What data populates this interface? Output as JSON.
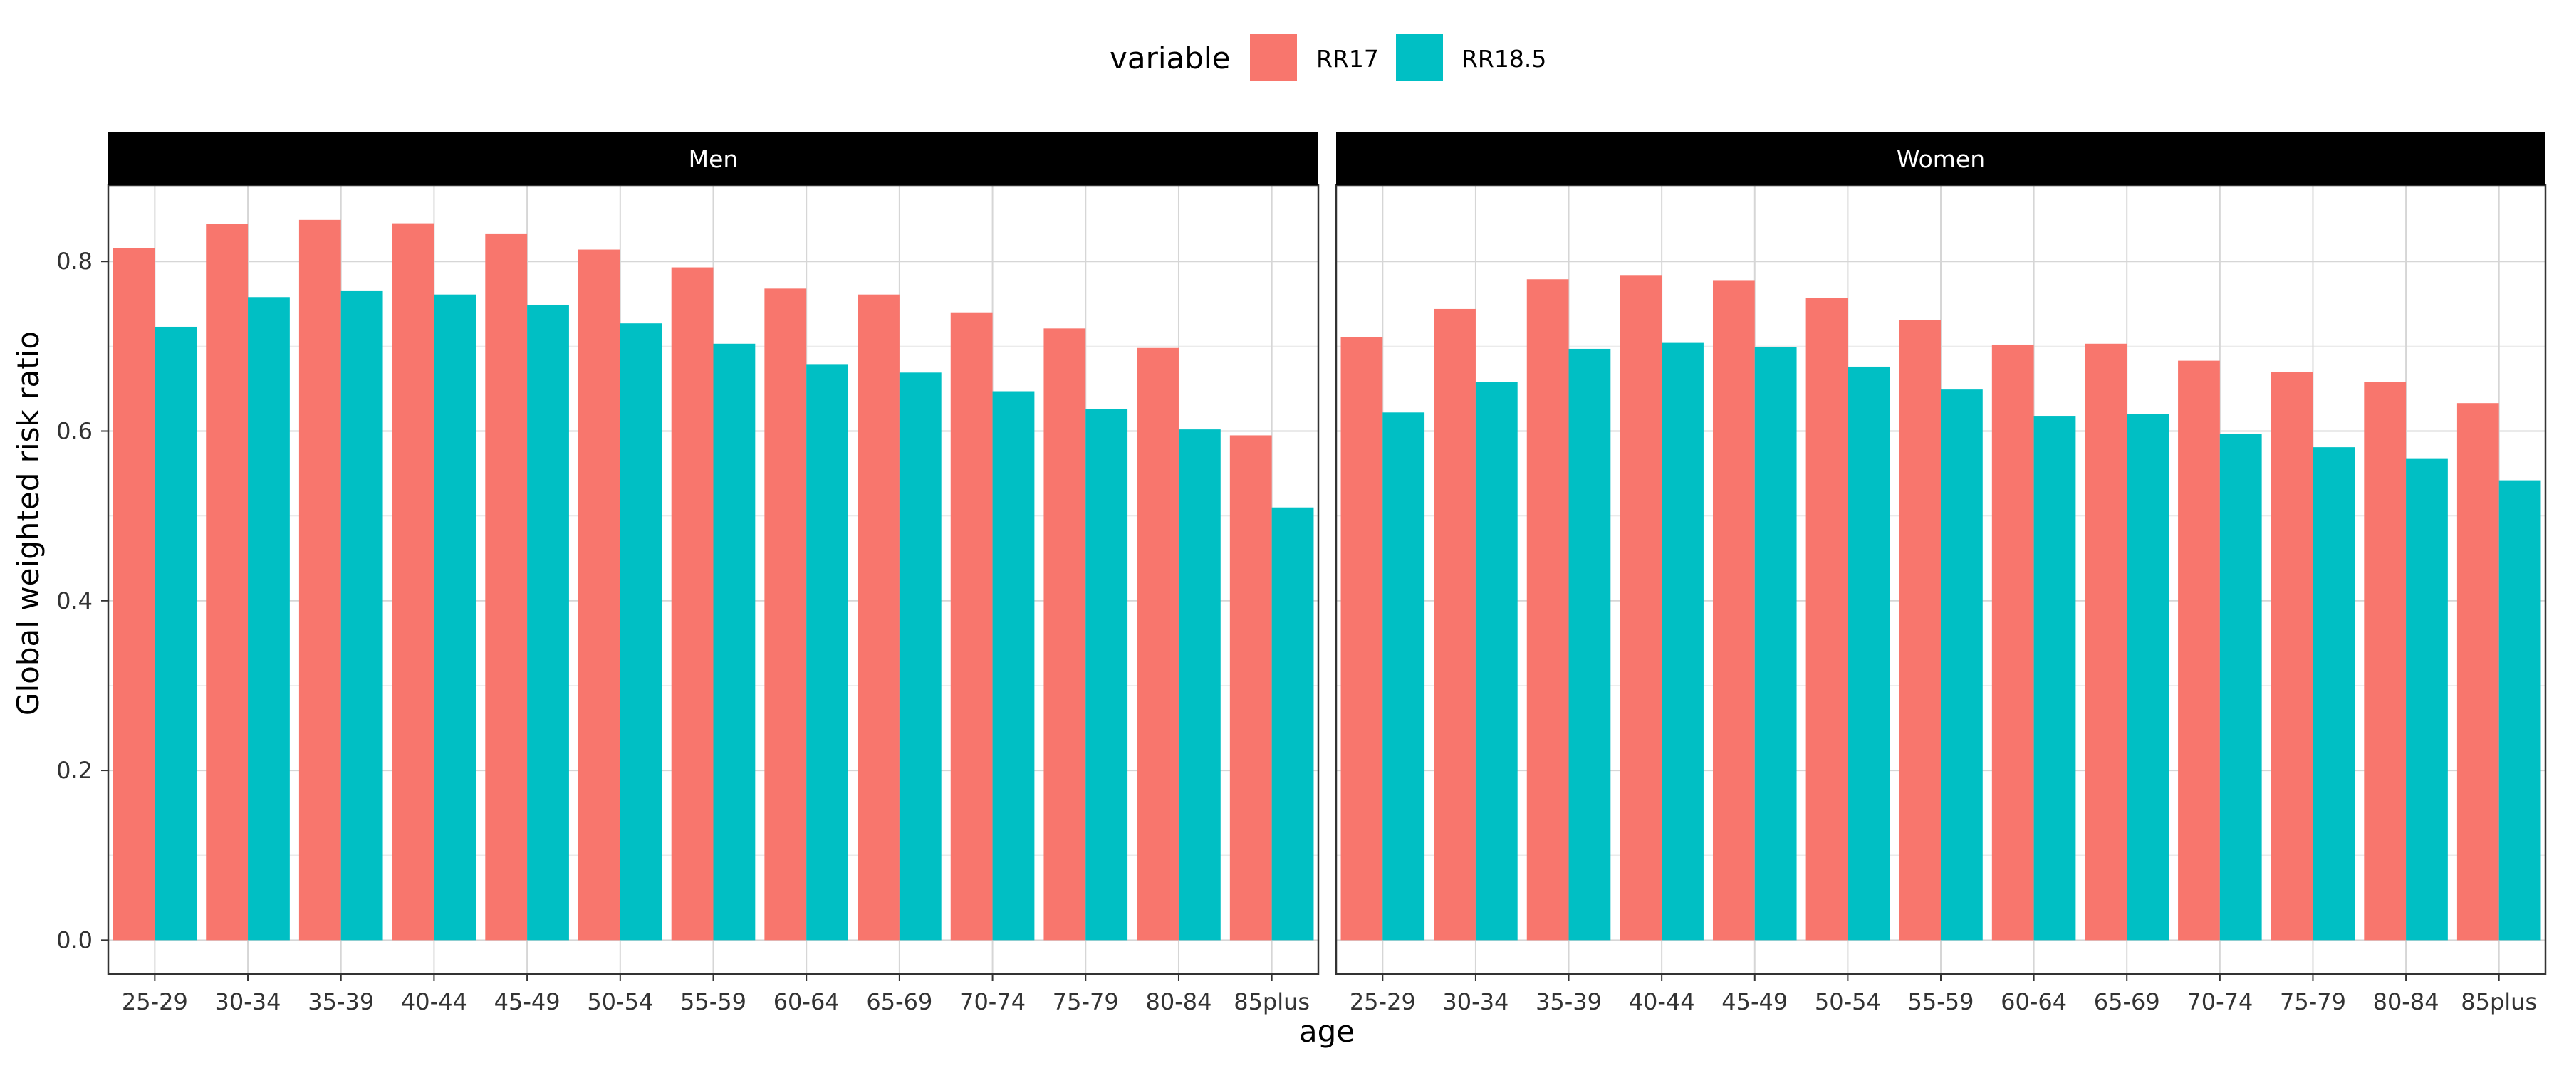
{
  "chart_data": {
    "type": "bar",
    "ylabel": "Global weighted risk ratio",
    "xlabel": "age",
    "ylim": [
      -0.04,
      0.89
    ],
    "yticks": [
      0.0,
      0.2,
      0.4,
      0.6,
      0.8
    ],
    "ytick_labels": [
      "0.0",
      "0.2",
      "0.4",
      "0.6",
      "0.8"
    ],
    "grid": true,
    "legend": {
      "title": "variable",
      "position": "top",
      "entries": [
        {
          "label": "RR17",
          "color": "#F8766D"
        },
        {
          "label": "RR18.5",
          "color": "#00BFC4"
        }
      ]
    },
    "categories": [
      "25-29",
      "30-34",
      "35-39",
      "40-44",
      "45-49",
      "50-54",
      "55-59",
      "60-64",
      "65-69",
      "70-74",
      "75-79",
      "80-84",
      "85plus"
    ],
    "panels": [
      {
        "name": "Men",
        "series": [
          {
            "name": "RR17",
            "values": [
              0.816,
              0.844,
              0.849,
              0.845,
              0.833,
              0.814,
              0.793,
              0.768,
              0.761,
              0.74,
              0.721,
              0.698,
              0.595
            ]
          },
          {
            "name": "RR18.5",
            "values": [
              0.723,
              0.758,
              0.765,
              0.761,
              0.749,
              0.727,
              0.703,
              0.679,
              0.669,
              0.647,
              0.626,
              0.602,
              0.51
            ]
          }
        ]
      },
      {
        "name": "Women",
        "series": [
          {
            "name": "RR17",
            "values": [
              0.711,
              0.744,
              0.779,
              0.784,
              0.778,
              0.757,
              0.731,
              0.702,
              0.703,
              0.683,
              0.67,
              0.658,
              0.633
            ]
          },
          {
            "name": "RR18.5",
            "values": [
              0.622,
              0.658,
              0.697,
              0.704,
              0.699,
              0.676,
              0.649,
              0.618,
              0.62,
              0.597,
              0.581,
              0.568,
              0.542
            ]
          }
        ]
      }
    ]
  }
}
